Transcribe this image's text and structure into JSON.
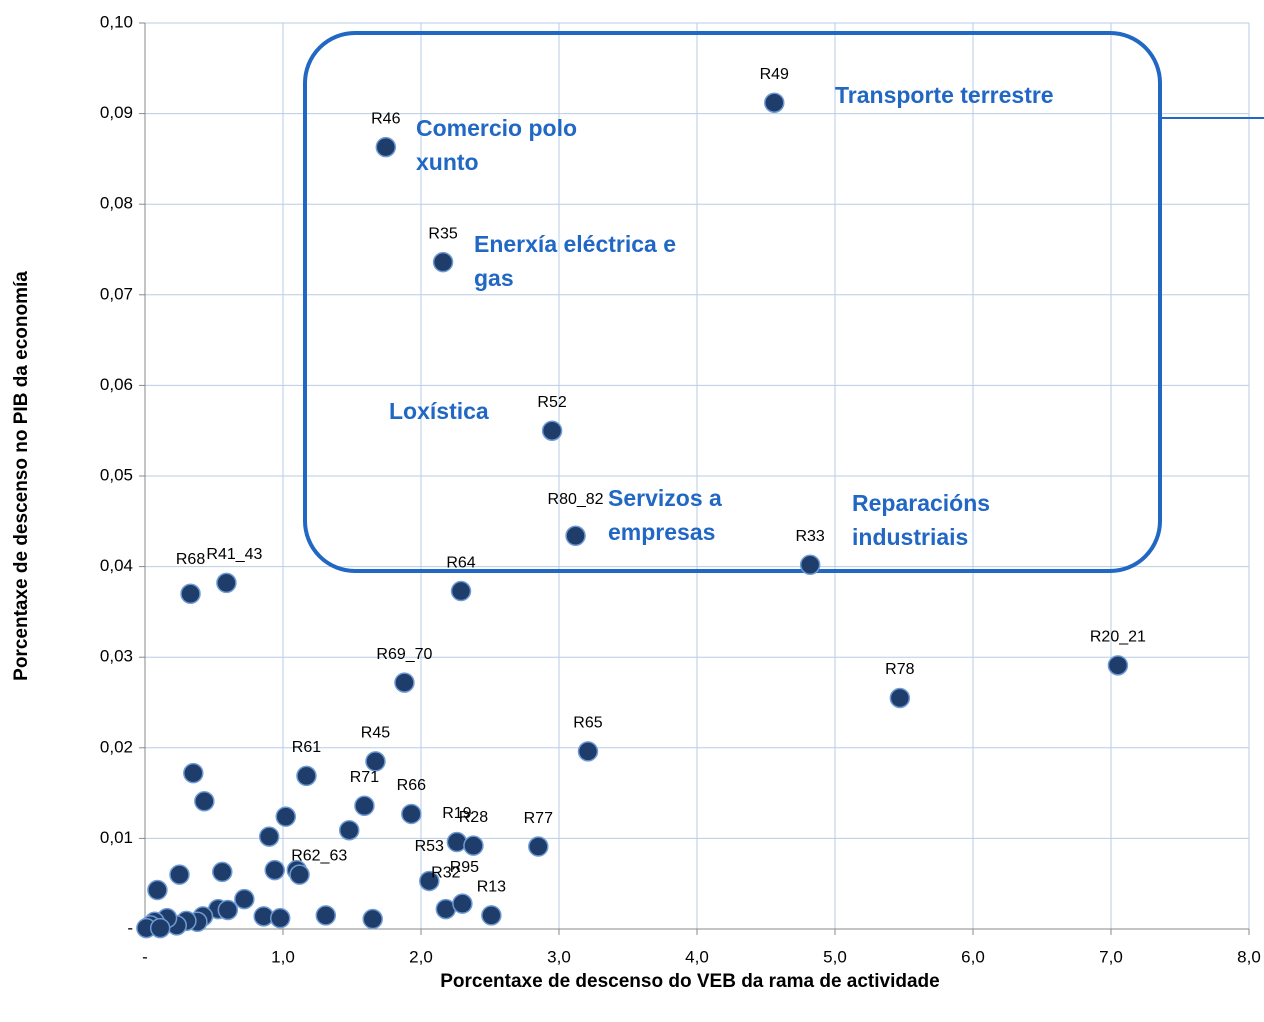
{
  "chart_data": {
    "type": "scatter",
    "xlabel": "Porcentaxe de descenso do VEB da rama de actividade",
    "ylabel": "Porcentaxe de descenso no PIB da economía",
    "xlim": [
      0,
      8
    ],
    "ylim": [
      0,
      0.1
    ],
    "xticks": [
      {
        "value": 0,
        "label": "-"
      },
      {
        "value": 1,
        "label": "1,0"
      },
      {
        "value": 2,
        "label": "2,0"
      },
      {
        "value": 3,
        "label": "3,0"
      },
      {
        "value": 4,
        "label": "4,0"
      },
      {
        "value": 5,
        "label": "5,0"
      },
      {
        "value": 6,
        "label": "6,0"
      },
      {
        "value": 7,
        "label": "7,0"
      },
      {
        "value": 8,
        "label": "8,0"
      }
    ],
    "yticks": [
      {
        "value": 0,
        "label": "-"
      },
      {
        "value": 0.01,
        "label": "0,01"
      },
      {
        "value": 0.02,
        "label": "0,02"
      },
      {
        "value": 0.03,
        "label": "0,03"
      },
      {
        "value": 0.04,
        "label": "0,04"
      },
      {
        "value": 0.05,
        "label": "0,05"
      },
      {
        "value": 0.06,
        "label": "0,06"
      },
      {
        "value": 0.07,
        "label": "0,07"
      },
      {
        "value": 0.08,
        "label": "0,08"
      },
      {
        "value": 0.09,
        "label": "0,09"
      },
      {
        "value": 0.1,
        "label": "0,10"
      }
    ],
    "grid": true,
    "color": "#1f3d6b",
    "point_labels": [
      "R49",
      "R46",
      "R35",
      "R52",
      "R80_82",
      "R33",
      "R64",
      "R41_43",
      "R68",
      "R20_21",
      "R78",
      "R69_70",
      "R65",
      "R45",
      "R61",
      "R71",
      "R66",
      "R19",
      "R28",
      "R77",
      "R62_63",
      "R53",
      "R32",
      "R95",
      "R13",
      null,
      null,
      null,
      null,
      null,
      null,
      null,
      null,
      null,
      null,
      null,
      null,
      null,
      null,
      null,
      null,
      null,
      null,
      null,
      null,
      null,
      null,
      null,
      null,
      null,
      null
    ],
    "x": [
      4.56,
      1.745,
      2.16,
      2.95,
      3.12,
      4.82,
      2.29,
      0.59,
      0.33,
      7.05,
      5.47,
      1.88,
      3.21,
      1.67,
      1.17,
      1.59,
      1.93,
      2.26,
      2.38,
      2.85,
      1.48,
      2.06,
      2.18,
      2.3,
      2.51,
      0.35,
      0.43,
      0.9,
      1.02,
      0.94,
      1.1,
      1.12,
      0.56,
      0.25,
      0.09,
      0.72,
      0.53,
      0.6,
      0.42,
      0.38,
      0.3,
      0.23,
      0.16,
      0.07,
      0.04,
      0.01,
      0.11,
      0.86,
      0.98,
      1.31,
      1.65
    ],
    "values": [
      0.0912,
      0.0863,
      0.0736,
      0.055,
      0.0434,
      0.0402,
      0.0373,
      0.0382,
      0.037,
      0.0291,
      0.0255,
      0.0272,
      0.0196,
      0.0185,
      0.0169,
      0.0136,
      0.0127,
      0.0096,
      0.0092,
      0.0091,
      0.0109,
      0.0053,
      0.0022,
      0.0028,
      0.0015,
      0.0172,
      0.0141,
      0.0102,
      0.0124,
      0.0065,
      0.0065,
      0.006,
      0.0063,
      0.006,
      0.0043,
      0.0033,
      0.0022,
      0.0021,
      0.0014,
      0.0008,
      0.0009,
      0.0004,
      0.0012,
      0.0008,
      0.0004,
      0.0001,
      0.0001,
      0.0014,
      0.0012,
      0.0015,
      0.0011
    ],
    "annotations": [
      {
        "lines": [
          "Transporte terrestre"
        ]
      },
      {
        "lines": [
          "Comercio polo",
          "xunto"
        ]
      },
      {
        "lines": [
          "Enerxía eléctrica e",
          "gas"
        ]
      },
      {
        "lines": [
          "Loxística"
        ]
      },
      {
        "lines": [
          "Servizos a",
          "empresas"
        ]
      },
      {
        "lines": [
          "Reparacións",
          "industriais"
        ]
      }
    ]
  }
}
